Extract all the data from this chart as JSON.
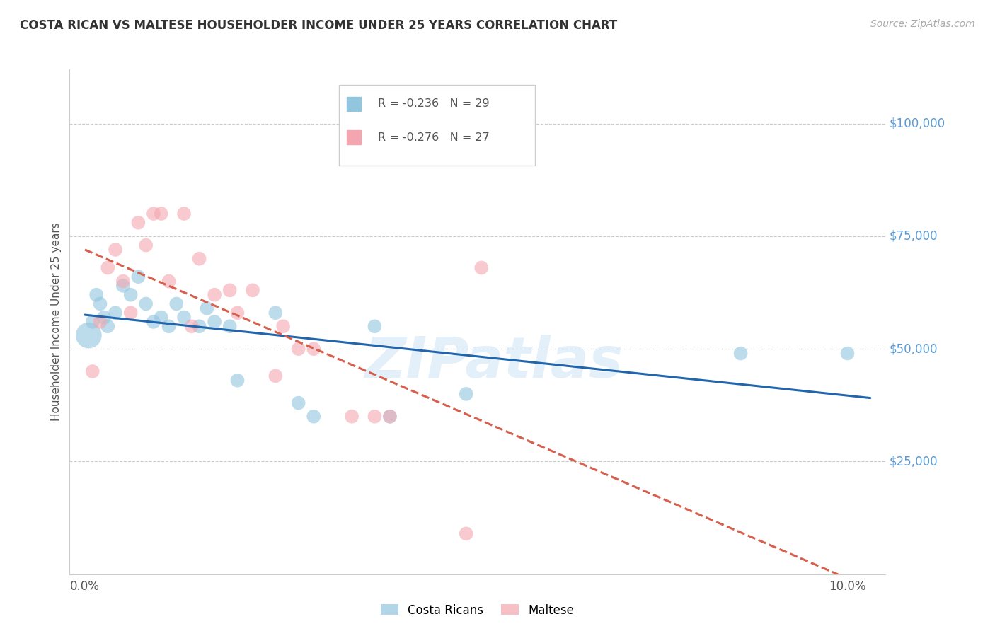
{
  "title": "COSTA RICAN VS MALTESE HOUSEHOLDER INCOME UNDER 25 YEARS CORRELATION CHART",
  "source": "Source: ZipAtlas.com",
  "ylabel": "Householder Income Under 25 years",
  "ytick_labels": [
    "$100,000",
    "$75,000",
    "$50,000",
    "$25,000"
  ],
  "ytick_values": [
    100000,
    75000,
    50000,
    25000
  ],
  "ymin": 0,
  "ymax": 112000,
  "xmin": -0.002,
  "xmax": 0.105,
  "legend_blue_r": "R = -0.236",
  "legend_blue_n": "N = 29",
  "legend_pink_r": "R = -0.276",
  "legend_pink_n": "N = 27",
  "watermark": "ZIPatlas",
  "blue_color": "#92c5de",
  "pink_color": "#f4a6b0",
  "trendline_blue": "#2166ac",
  "trendline_pink": "#d6604d",
  "costa_rican_x": [
    0.0005,
    0.001,
    0.0015,
    0.002,
    0.0025,
    0.003,
    0.004,
    0.005,
    0.006,
    0.007,
    0.008,
    0.009,
    0.01,
    0.011,
    0.012,
    0.013,
    0.015,
    0.016,
    0.017,
    0.019,
    0.02,
    0.025,
    0.028,
    0.03,
    0.038,
    0.04,
    0.05,
    0.086,
    0.1
  ],
  "costa_rican_y": [
    53000,
    56000,
    62000,
    60000,
    57000,
    55000,
    58000,
    64000,
    62000,
    66000,
    60000,
    56000,
    57000,
    55000,
    60000,
    57000,
    55000,
    59000,
    56000,
    55000,
    43000,
    58000,
    38000,
    35000,
    55000,
    35000,
    40000,
    49000,
    49000
  ],
  "costa_rican_sizes": [
    700,
    200,
    200,
    200,
    200,
    200,
    200,
    200,
    200,
    200,
    200,
    200,
    200,
    200,
    200,
    200,
    200,
    200,
    200,
    200,
    200,
    200,
    200,
    200,
    200,
    200,
    200,
    200,
    200
  ],
  "maltese_x": [
    0.001,
    0.002,
    0.003,
    0.004,
    0.005,
    0.006,
    0.007,
    0.008,
    0.009,
    0.01,
    0.011,
    0.013,
    0.014,
    0.015,
    0.017,
    0.019,
    0.02,
    0.022,
    0.025,
    0.026,
    0.028,
    0.03,
    0.035,
    0.038,
    0.04,
    0.05,
    0.052
  ],
  "maltese_y": [
    45000,
    56000,
    68000,
    72000,
    65000,
    58000,
    78000,
    73000,
    80000,
    80000,
    65000,
    80000,
    55000,
    70000,
    62000,
    63000,
    58000,
    63000,
    44000,
    55000,
    50000,
    50000,
    35000,
    35000,
    35000,
    9000,
    68000
  ],
  "maltese_sizes": [
    200,
    200,
    200,
    200,
    200,
    200,
    200,
    200,
    200,
    200,
    200,
    200,
    200,
    200,
    200,
    200,
    200,
    200,
    200,
    200,
    200,
    200,
    200,
    200,
    200,
    200,
    200
  ]
}
